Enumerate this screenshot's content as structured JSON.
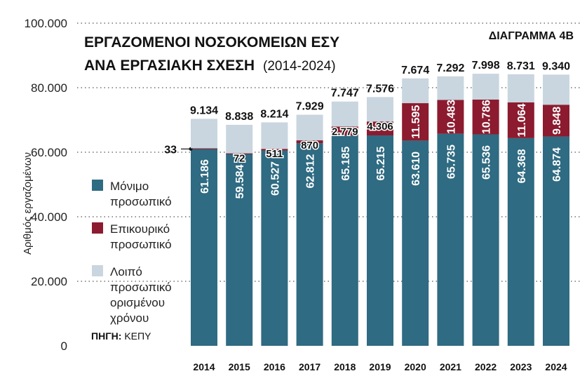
{
  "chart_data": {
    "type": "bar",
    "stacked": true,
    "title": "ΕΡΓΑΖΟΜΕΝΟΙ ΝΟΣΟΚΟΜΕΙΩΝ ΕΣΥ",
    "subtitle": "ΑΝΑ ΕΡΓΑΣΙΑΚΗ ΣΧΕΣΗ",
    "period": "(2014-2024)",
    "badge": "ΔΙΑΓΡΑΜΜΑ 4Β",
    "ylabel": "Αριθμός εργαζομένων",
    "xlabel": "",
    "ylim": [
      0,
      100000
    ],
    "yticks": [
      0,
      20000,
      40000,
      60000,
      80000,
      100000
    ],
    "ytick_labels": [
      "0",
      "20.000",
      "40.000",
      "60.000",
      "80.000",
      "100.000"
    ],
    "grid": true,
    "categories": [
      "2014",
      "2015",
      "2016",
      "2017",
      "2018",
      "2019",
      "2020",
      "2021",
      "2022",
      "2023",
      "2024"
    ],
    "series": [
      {
        "name": "Μόνιμο προσωπικό",
        "legend_lines": [
          "Μόνιμο",
          "προσωπικό"
        ],
        "color": "#2f6b82",
        "values": [
          61186,
          59584,
          60527,
          62812,
          65185,
          65215,
          63610,
          65735,
          65536,
          64368,
          64874
        ],
        "labels": [
          "61.186",
          "59.584",
          "60.527",
          "62.812",
          "65.185",
          "65.215",
          "63.610",
          "65.735",
          "65.536",
          "64.368",
          "64.874"
        ]
      },
      {
        "name": "Επικουρικό προσωπικό",
        "legend_lines": [
          "Επικουρικό",
          "προσωπικό"
        ],
        "color": "#8c1b2f",
        "values": [
          33,
          72,
          511,
          870,
          2779,
          4306,
          11595,
          10483,
          10786,
          11064,
          9848
        ],
        "labels": [
          "33",
          "72",
          "511",
          "870",
          "2.779",
          "4.306",
          "11.595",
          "10.483",
          "10.786",
          "11.064",
          "9.848"
        ]
      },
      {
        "name": "Λοιπό προσωπικό ορισμένου χρόνου",
        "legend_lines": [
          "Λοιπό",
          "προσωπικό",
          "ορισμένου",
          "χρόνου"
        ],
        "color": "#c9d6df",
        "values": [
          9134,
          8838,
          8214,
          7929,
          7747,
          7576,
          7674,
          7292,
          7998,
          8731,
          9340
        ],
        "labels": [
          "9.134",
          "8.838",
          "8.214",
          "7.929",
          "7.747",
          "7.576",
          "7.674",
          "7.292",
          "7.998",
          "8.731",
          "9.340"
        ]
      }
    ],
    "legend": "left",
    "source_label": "ΠΗΓΗ:",
    "source": "ΚΕΠΥ"
  }
}
